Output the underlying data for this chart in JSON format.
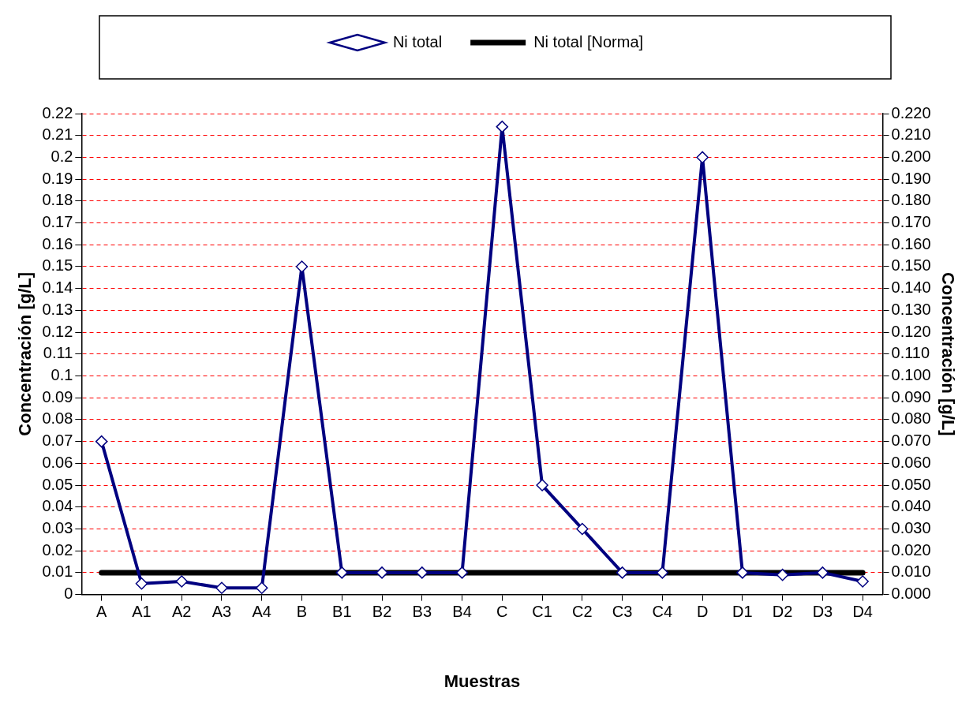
{
  "chart_data": {
    "type": "line",
    "xlabel": "Muestras",
    "ylabel": "Concentración [g/L]",
    "y2label": "Concentración [g/L]",
    "categories": [
      "A",
      "A1",
      "A2",
      "A3",
      "A4",
      "B",
      "B1",
      "B2",
      "B3",
      "B4",
      "C",
      "C1",
      "C2",
      "C3",
      "C4",
      "D",
      "D1",
      "D2",
      "D3",
      "D4"
    ],
    "series": [
      {
        "name": "Ni total",
        "color": "#000080",
        "marker": "diamond",
        "values": [
          0.07,
          0.005,
          0.006,
          0.003,
          0.003,
          0.15,
          0.01,
          0.01,
          0.01,
          0.01,
          0.214,
          0.05,
          0.03,
          0.01,
          0.01,
          0.2,
          0.01,
          0.009,
          0.01,
          0.006
        ]
      },
      {
        "name": "Ni total [Norma]",
        "color": "#000000",
        "marker": "none",
        "values": [
          0.01,
          0.01,
          0.01,
          0.01,
          0.01,
          0.01,
          0.01,
          0.01,
          0.01,
          0.01,
          0.01,
          0.01,
          0.01,
          0.01,
          0.01,
          0.01,
          0.01,
          0.01,
          0.01,
          0.01
        ]
      }
    ],
    "ylim": [
      0,
      0.22
    ],
    "yticks": [
      0,
      0.01,
      0.02,
      0.03,
      0.04,
      0.05,
      0.06,
      0.07,
      0.08,
      0.09,
      0.1,
      0.11,
      0.12,
      0.13,
      0.14,
      0.15,
      0.16,
      0.17,
      0.18,
      0.19,
      0.2,
      0.21,
      0.22
    ],
    "y2lim": [
      0,
      0.22
    ],
    "y2ticks": [
      {
        "value": 0,
        "label": "0.000"
      },
      {
        "value": 0.01,
        "label": "0.010"
      },
      {
        "value": 0.02,
        "label": "0.020"
      },
      {
        "value": 0.03,
        "label": "0.030"
      },
      {
        "value": 0.04,
        "label": "0.040"
      },
      {
        "value": 0.05,
        "label": "0.050"
      },
      {
        "value": 0.06,
        "label": "0.060"
      },
      {
        "value": 0.07,
        "label": "0.070"
      },
      {
        "value": 0.08,
        "label": "0.080"
      },
      {
        "value": 0.09,
        "label": "0.090"
      },
      {
        "value": 0.1,
        "label": "0.100"
      },
      {
        "value": 0.11,
        "label": "0.110"
      },
      {
        "value": 0.12,
        "label": "0.120"
      },
      {
        "value": 0.13,
        "label": "0.130"
      },
      {
        "value": 0.14,
        "label": "0.140"
      },
      {
        "value": 0.15,
        "label": "0.150"
      },
      {
        "value": 0.16,
        "label": "0.160"
      },
      {
        "value": 0.17,
        "label": "0.170"
      },
      {
        "value": 0.18,
        "label": "0.180"
      },
      {
        "value": 0.19,
        "label": "0.190"
      },
      {
        "value": 0.2,
        "label": "0.200"
      },
      {
        "value": 0.21,
        "label": "0.210"
      },
      {
        "value": 0.22,
        "label": "0.220"
      }
    ],
    "grid": "y",
    "legend": "top",
    "line_style": "solid"
  }
}
